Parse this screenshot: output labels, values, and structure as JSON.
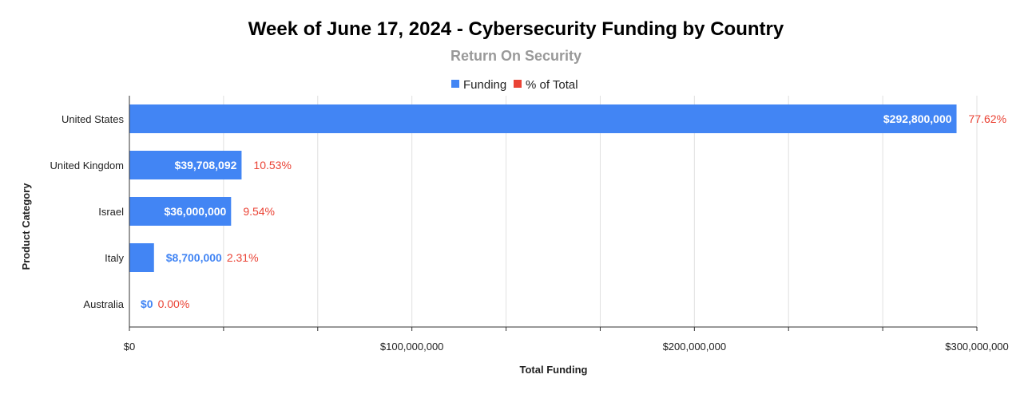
{
  "chart_data": {
    "type": "bar",
    "orientation": "horizontal",
    "title": "Week of June 17, 2024 - Cybersecurity Funding by Country",
    "subtitle": "Return On Security",
    "xlabel": "Total Funding",
    "ylabel": "Product Category",
    "xlim": [
      0,
      300000000
    ],
    "xticks": [
      0,
      100000000,
      200000000,
      300000000
    ],
    "xtick_labels": [
      "$0",
      "$100,000,000",
      "$200,000,000",
      "$300,000,000"
    ],
    "categories": [
      "United States",
      "United Kingdom",
      "Israel",
      "Italy",
      "Australia"
    ],
    "series": [
      {
        "name": "Funding",
        "color": "#4285f4",
        "values": [
          292800000,
          39708092,
          36000000,
          8700000,
          0
        ],
        "labels": [
          "$292,800,000",
          "$39,708,092",
          "$36,000,000",
          "$8,700,000",
          "$0"
        ]
      },
      {
        "name": "% of Total",
        "color": "#ea4335",
        "values": [
          77.62,
          10.53,
          9.54,
          2.31,
          0.0
        ],
        "labels": [
          "77.62%",
          "10.53%",
          "9.54%",
          "2.31%",
          "0.00%"
        ]
      }
    ],
    "legend_position": "top",
    "grid": true
  }
}
